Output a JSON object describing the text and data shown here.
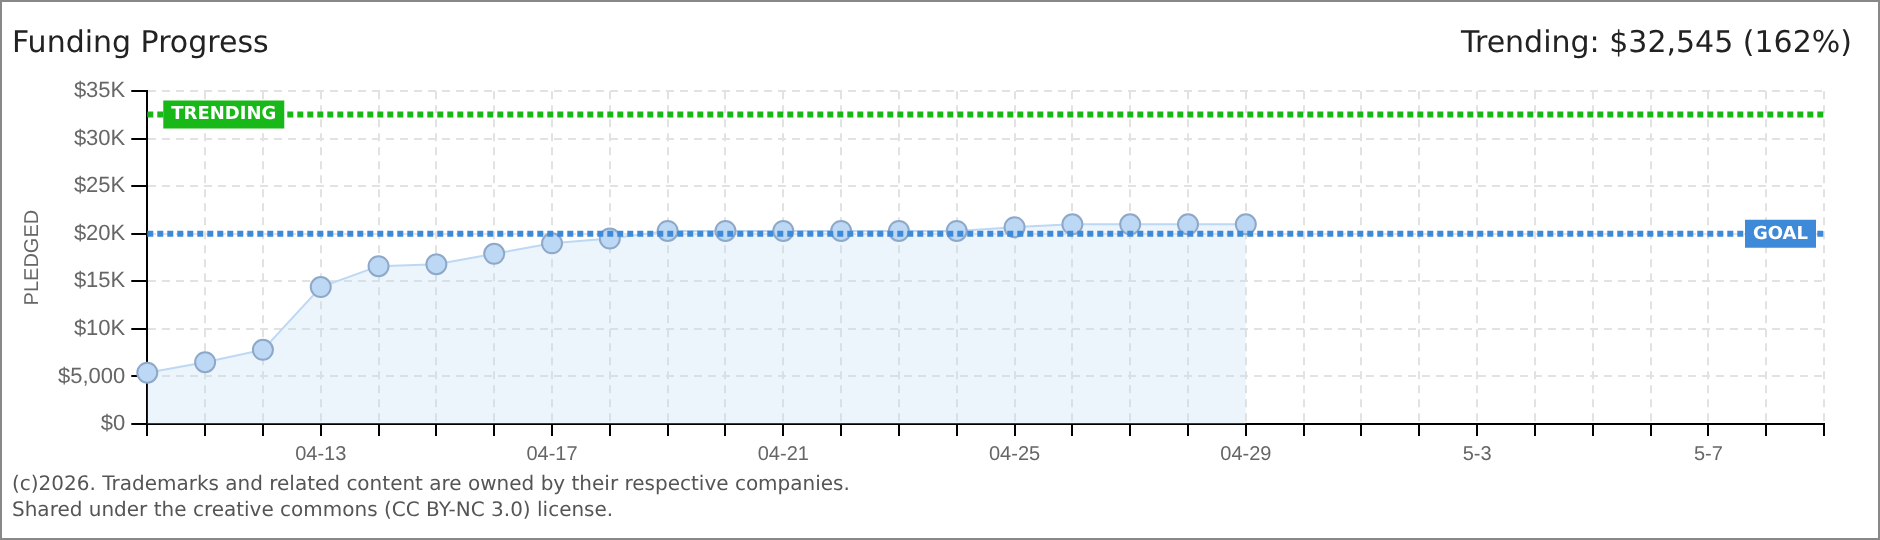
{
  "chart_data": {
    "type": "area",
    "title": "Funding Progress",
    "ylabel": "PLEDGED",
    "categories": [
      null,
      null,
      null,
      "04-13",
      null,
      null,
      null,
      "04-17",
      null,
      null,
      null,
      "04-21",
      null,
      null,
      null,
      "04-25",
      null,
      null,
      null,
      "04-29",
      null,
      null,
      null,
      "5-3",
      null,
      null,
      null,
      "5-7",
      null,
      null
    ],
    "series": [
      {
        "color": "#bcd8f4",
        "values": [
          5400,
          6500,
          7800,
          14400,
          16600,
          16800,
          17900,
          19000,
          19500,
          20300,
          20300,
          20300,
          20300,
          20300,
          20300,
          20700,
          21000,
          21000,
          21000,
          21000,
          null,
          null,
          null,
          null,
          null,
          null,
          null,
          null,
          null,
          null
        ]
      }
    ],
    "ylim": [
      0,
      35000
    ],
    "yticks": [
      {
        "value": 0,
        "label": "$0"
      },
      {
        "value": 5000,
        "label": "$5,000"
      },
      {
        "value": 10000,
        "label": "$10K"
      },
      {
        "value": 15000,
        "label": "$15K"
      },
      {
        "value": 20000,
        "label": "$20K"
      },
      {
        "value": 25000,
        "label": "$25K"
      },
      {
        "value": 30000,
        "label": "$30K"
      },
      {
        "value": 35000,
        "label": "$35K"
      }
    ],
    "grid": true,
    "legend": false,
    "marker": "circle",
    "line_style": "solid",
    "ref_lines": [
      {
        "axis": "y",
        "value": 20000,
        "label": "GOAL",
        "color": "#3f8ad8",
        "line_style": "dotted"
      },
      {
        "axis": "y",
        "value": 32545,
        "label": "TRENDING",
        "color": "#18b818",
        "line_style": "dotted"
      }
    ],
    "annotations": [
      "Trending: $32,545 (162%)",
      "(c)2026. Trademarks and related content are owned by their respective companies.",
      "Shared under the creative commons (CC BY-NC 3.0) license."
    ]
  }
}
